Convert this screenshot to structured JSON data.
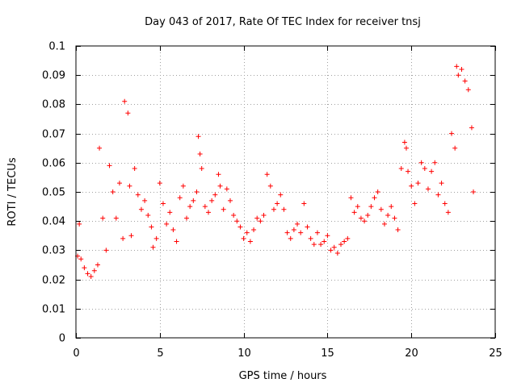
{
  "chart_data": {
    "type": "scatter",
    "title": "Day 043 of 2017, Rate Of TEC Index for receiver tnsj",
    "xlabel": "GPS time / hours",
    "ylabel": "ROTI / TECUs",
    "xlim": [
      0,
      25
    ],
    "ylim": [
      0,
      0.1
    ],
    "xticks": [
      0,
      5,
      10,
      15,
      20,
      25
    ],
    "yticks": [
      0,
      0.01,
      0.02,
      0.03,
      0.04,
      0.05,
      0.06,
      0.07,
      0.08,
      0.09,
      0.1
    ],
    "xtick_labels": [
      "0",
      "5",
      "10",
      "15",
      "20",
      "25"
    ],
    "ytick_labels": [
      "0",
      "0.01",
      "0.02",
      "0.03",
      "0.04",
      "0.05",
      "0.06",
      "0.07",
      "0.08",
      "0.09",
      "0.1"
    ],
    "grid": true,
    "marker": "+",
    "color": "#ff0000",
    "series": [
      {
        "name": "ROTI",
        "x": [
          0.1,
          0.2,
          0.3,
          0.5,
          0.7,
          0.9,
          1.1,
          1.3,
          1.4,
          1.6,
          1.8,
          2.0,
          2.2,
          2.4,
          2.6,
          2.8,
          2.9,
          3.1,
          3.2,
          3.3,
          3.5,
          3.7,
          3.9,
          4.1,
          4.3,
          4.5,
          4.6,
          4.8,
          5.0,
          5.2,
          5.4,
          5.6,
          5.8,
          6.0,
          6.2,
          6.4,
          6.6,
          6.8,
          7.0,
          7.2,
          7.3,
          7.4,
          7.5,
          7.7,
          7.9,
          8.1,
          8.3,
          8.5,
          8.6,
          8.8,
          9.0,
          9.2,
          9.4,
          9.6,
          9.8,
          10.0,
          10.2,
          10.4,
          10.6,
          10.8,
          11.0,
          11.2,
          11.4,
          11.6,
          11.8,
          12.0,
          12.2,
          12.4,
          12.6,
          12.8,
          13.0,
          13.2,
          13.4,
          13.6,
          13.8,
          14.0,
          14.2,
          14.4,
          14.6,
          14.8,
          15.0,
          15.2,
          15.4,
          15.6,
          15.8,
          16.0,
          16.2,
          16.4,
          16.6,
          16.8,
          17.0,
          17.2,
          17.4,
          17.6,
          17.8,
          18.0,
          18.2,
          18.4,
          18.6,
          18.8,
          19.0,
          19.2,
          19.4,
          19.6,
          19.7,
          19.8,
          20.0,
          20.2,
          20.4,
          20.6,
          20.8,
          21.0,
          21.2,
          21.4,
          21.6,
          21.8,
          22.0,
          22.2,
          22.4,
          22.6,
          22.7,
          22.8,
          23.0,
          23.2,
          23.4,
          23.6,
          23.7
        ],
        "y": [
          0.028,
          0.039,
          0.027,
          0.024,
          0.022,
          0.021,
          0.023,
          0.025,
          0.065,
          0.041,
          0.03,
          0.059,
          0.05,
          0.041,
          0.053,
          0.034,
          0.081,
          0.077,
          0.052,
          0.035,
          0.058,
          0.049,
          0.044,
          0.047,
          0.042,
          0.038,
          0.031,
          0.034,
          0.053,
          0.046,
          0.039,
          0.043,
          0.037,
          0.033,
          0.048,
          0.052,
          0.041,
          0.045,
          0.047,
          0.05,
          0.069,
          0.063,
          0.058,
          0.045,
          0.043,
          0.047,
          0.049,
          0.056,
          0.052,
          0.044,
          0.051,
          0.047,
          0.042,
          0.04,
          0.038,
          0.034,
          0.036,
          0.033,
          0.037,
          0.041,
          0.04,
          0.042,
          0.056,
          0.052,
          0.044,
          0.046,
          0.049,
          0.044,
          0.036,
          0.034,
          0.037,
          0.039,
          0.036,
          0.046,
          0.038,
          0.034,
          0.032,
          0.036,
          0.032,
          0.033,
          0.035,
          0.03,
          0.031,
          0.029,
          0.032,
          0.033,
          0.034,
          0.048,
          0.043,
          0.045,
          0.041,
          0.04,
          0.042,
          0.045,
          0.048,
          0.05,
          0.044,
          0.039,
          0.042,
          0.045,
          0.041,
          0.037,
          0.058,
          0.067,
          0.065,
          0.057,
          0.052,
          0.046,
          0.053,
          0.06,
          0.058,
          0.051,
          0.057,
          0.06,
          0.049,
          0.053,
          0.046,
          0.043,
          0.07,
          0.065,
          0.093,
          0.09,
          0.092,
          0.088,
          0.085,
          0.072,
          0.05
        ]
      }
    ]
  }
}
